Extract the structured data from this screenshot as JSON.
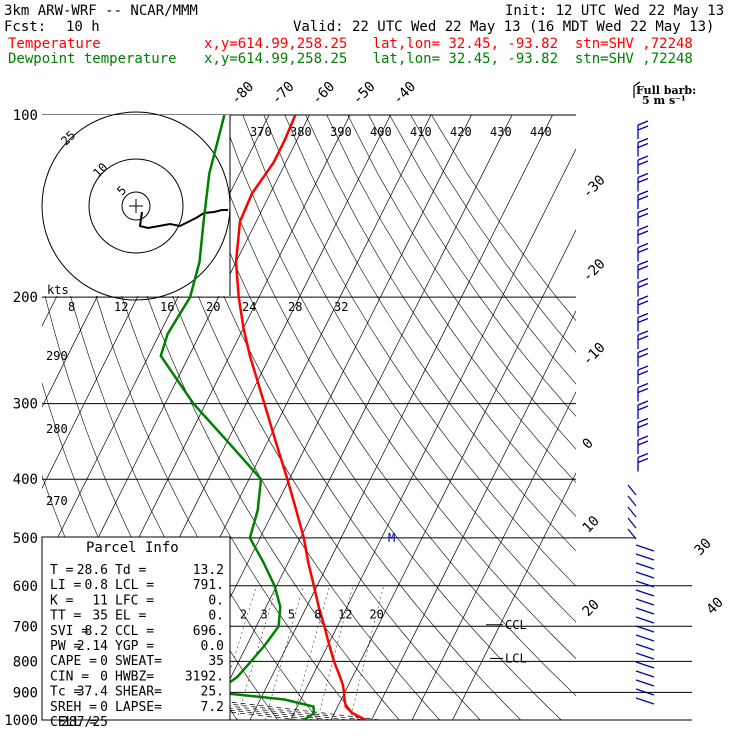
{
  "header": {
    "model": "3km ARW-WRF -- NCAR/MMM",
    "init": "Init: 12 UTC Wed 22 May 13",
    "fcst_label": "Fcst:",
    "fcst_value": "10 h",
    "valid": "Valid: 22 UTC Wed 22 May 13 (16 MDT Wed 22 May 13)",
    "temp_label": "Temperature",
    "temp_loc": "x,y=614.99,258.25   lat,lon= 32.45, -93.82  stn=SHV ,72248",
    "dew_label": "Dewpoint temperature",
    "dew_loc": "x,y=614.99,258.25   lat,lon= 32.45, -93.82  stn=SHV ,72248",
    "barb_key_line1": "Full barb:",
    "barb_key_line2": "5 m s⁻¹"
  },
  "colors": {
    "temperature": "#ff0000",
    "dewpoint": "#008000",
    "wind": "#0000aa"
  },
  "chart_data": {
    "type": "line",
    "plot": "Skew-T log-P",
    "pressure_levels": [
      "100",
      "200",
      "300",
      "400",
      "500",
      "600",
      "700",
      "800",
      "900",
      "1000"
    ],
    "isotherm_labels": [
      "-80",
      "-70",
      "-60",
      "-50",
      "-40",
      "-30",
      "-20",
      "-10",
      "0",
      "10",
      "20",
      "30",
      "40"
    ],
    "theta_labels": [
      "370",
      "380",
      "390",
      "400",
      "410",
      "420",
      "430",
      "440"
    ],
    "dry_adiabat_labels": [
      "290",
      "280",
      "270"
    ],
    "mixing_ratio_labels": [
      "2",
      "3",
      "5",
      "8",
      "12",
      "20"
    ],
    "hodograph": {
      "unit_label": "kts",
      "ring_labels": [
        "5",
        "10",
        "25"
      ],
      "speed_labels": [
        "8",
        "12",
        "16",
        "20",
        "24",
        "28",
        "32"
      ]
    },
    "ccl_label": "CCL",
    "lcl_label": "LCL",
    "mark_label": "M",
    "series": [
      {
        "name": "Temperature",
        "points": [
          [
            1000,
            28.6
          ],
          [
            975,
            24.5
          ],
          [
            950,
            22.0
          ],
          [
            925,
            20.8
          ],
          [
            900,
            19.8
          ],
          [
            875,
            18.6
          ],
          [
            850,
            17.0
          ],
          [
            800,
            13.5
          ],
          [
            750,
            10.2
          ],
          [
            700,
            6.8
          ],
          [
            650,
            3.0
          ],
          [
            600,
            -0.8
          ],
          [
            550,
            -5.0
          ],
          [
            500,
            -9.2
          ],
          [
            450,
            -14.5
          ],
          [
            400,
            -20.5
          ],
          [
            350,
            -27.5
          ],
          [
            300,
            -35.5
          ],
          [
            250,
            -45.0
          ],
          [
            225,
            -50.0
          ],
          [
            200,
            -55.0
          ],
          [
            175,
            -60.0
          ],
          [
            150,
            -64.0
          ],
          [
            135,
            -64.5
          ],
          [
            120,
            -63.0
          ],
          [
            110,
            -63.0
          ],
          [
            100,
            -63.5
          ]
        ]
      },
      {
        "name": "Dewpoint temperature",
        "points": [
          [
            1000,
            13.2
          ],
          [
            975,
            15.0
          ],
          [
            950,
            14.0
          ],
          [
            925,
            6.0
          ],
          [
            910,
            -4.5
          ],
          [
            900,
            -12.0
          ],
          [
            850,
            -8.5
          ],
          [
            800,
            -7.0
          ],
          [
            750,
            -5.5
          ],
          [
            700,
            -4.5
          ],
          [
            650,
            -6.5
          ],
          [
            600,
            -10.5
          ],
          [
            550,
            -16.0
          ],
          [
            500,
            -22.5
          ],
          [
            450,
            -24.0
          ],
          [
            400,
            -27.0
          ],
          [
            350,
            -39.0
          ],
          [
            300,
            -53.0
          ],
          [
            250,
            -67.0
          ],
          [
            230,
            -68.0
          ],
          [
            200,
            -67.0
          ],
          [
            175,
            -69.0
          ],
          [
            150,
            -73.0
          ],
          [
            125,
            -77.5
          ],
          [
            100,
            -81.0
          ]
        ]
      }
    ]
  },
  "parcel_info": {
    "title": "Parcel Info",
    "rows": [
      [
        "T  =",
        "28.6",
        "Td =",
        "13.2"
      ],
      [
        "LI =",
        "0.8",
        "LCL =",
        "791."
      ],
      [
        "K  =",
        "11",
        "LFC =",
        "0."
      ],
      [
        "TT =",
        "35",
        "EL  =",
        "0."
      ],
      [
        "SVI =",
        "8.2",
        "CCL =",
        "696."
      ],
      [
        "PW =",
        "2.14",
        "YGP =",
        "0.0"
      ],
      [
        "CAPE =",
        "0",
        "SWEAT=",
        "35"
      ],
      [
        "CIN =",
        "0",
        "HWBZ=",
        "3192."
      ],
      [
        "Tc =",
        "37.4",
        "SHEAR=",
        "25."
      ],
      [
        "SREH =",
        "0",
        "LAPSE=",
        "7.2"
      ],
      [
        "CELL =",
        "287/25",
        "",
        ""
      ]
    ]
  }
}
